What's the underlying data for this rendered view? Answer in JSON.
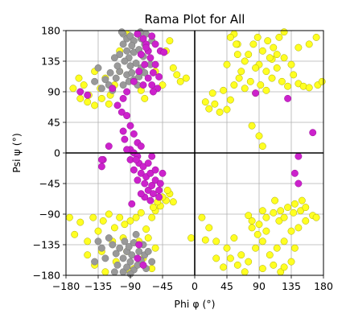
{
  "chart_data": {
    "type": "scatter",
    "title": "Rama Plot for All",
    "xlabel": "Phi φ (°)",
    "ylabel": "Psi ψ (°)",
    "xlim": [
      -180,
      180
    ],
    "ylim": [
      -180,
      180
    ],
    "xticks": [
      -180,
      -135,
      -90,
      -45,
      0,
      45,
      90,
      135,
      180
    ],
    "yticks": [
      -180,
      -135,
      -90,
      -45,
      0,
      45,
      90,
      135,
      180
    ],
    "xtick_labels": [
      "−180",
      "−135",
      "−90",
      "−45",
      "0",
      "45",
      "90",
      "135",
      "180"
    ],
    "ytick_labels": [
      "−180",
      "−135",
      "−90",
      "−45",
      "0",
      "45",
      "90",
      "135",
      "180"
    ],
    "grid": true,
    "zero_lines": true,
    "series": [
      {
        "color": "#ffff22",
        "edge": "#aaaa00",
        "points": [
          [
            -175,
            -95
          ],
          [
            -168,
            -120
          ],
          [
            -160,
            -102
          ],
          [
            -150,
            -130
          ],
          [
            -142,
            -95
          ],
          [
            -135,
            -115
          ],
          [
            -128,
            -100
          ],
          [
            -120,
            -90
          ],
          [
            -112,
            -110
          ],
          [
            -105,
            -95
          ],
          [
            -98,
            -105
          ],
          [
            -90,
            -100
          ],
          [
            -82,
            -95
          ],
          [
            -75,
            -88
          ],
          [
            -68,
            -112
          ],
          [
            -150,
            -150
          ],
          [
            -140,
            -165
          ],
          [
            -125,
            -175
          ],
          [
            -110,
            -160
          ],
          [
            -95,
            -145
          ],
          [
            -85,
            -170
          ],
          [
            -72,
            -155
          ],
          [
            -60,
            -170
          ],
          [
            -55,
            -140
          ],
          [
            -115,
            -130
          ],
          [
            -100,
            -125
          ],
          [
            -130,
            -145
          ],
          [
            -78,
            -130
          ],
          [
            -65,
            -125
          ],
          [
            -90,
            -175
          ],
          [
            -60,
            -95
          ],
          [
            -55,
            -85
          ],
          [
            -48,
            -78
          ],
          [
            -40,
            -70
          ],
          [
            -35,
            -60
          ],
          [
            -52,
            -72
          ],
          [
            -45,
            -65
          ],
          [
            -30,
            -72
          ],
          [
            -58,
            -80
          ],
          [
            -38,
            -55
          ],
          [
            -170,
            95
          ],
          [
            -162,
            110
          ],
          [
            -155,
            100
          ],
          [
            -148,
            85
          ],
          [
            -140,
            120
          ],
          [
            -132,
            95
          ],
          [
            -125,
            110
          ],
          [
            -118,
            85
          ],
          [
            -112,
            100
          ],
          [
            -105,
            120
          ],
          [
            -150,
            75
          ],
          [
            -140,
            70
          ],
          [
            -130,
            80
          ],
          [
            -120,
            72
          ],
          [
            -160,
            80
          ],
          [
            -25,
            115
          ],
          [
            -20,
            105
          ],
          [
            -12,
            110
          ],
          [
            -45,
            100
          ],
          [
            -30,
            125
          ],
          [
            -40,
            150
          ],
          [
            -35,
            165
          ],
          [
            -105,
            150
          ],
          [
            -95,
            175
          ],
          [
            -55,
            120
          ],
          [
            -70,
            80
          ],
          [
            -75,
            92
          ],
          [
            15,
            75
          ],
          [
            20,
            65
          ],
          [
            28,
            72
          ],
          [
            35,
            60
          ],
          [
            25,
            88
          ],
          [
            40,
            92
          ],
          [
            50,
            78
          ],
          [
            45,
            64
          ],
          [
            55,
            100
          ],
          [
            62,
            110
          ],
          [
            70,
            95
          ],
          [
            78,
            105
          ],
          [
            85,
            88
          ],
          [
            92,
            100
          ],
          [
            100,
            92
          ],
          [
            108,
            110
          ],
          [
            115,
            125
          ],
          [
            122,
            105
          ],
          [
            130,
            98
          ],
          [
            138,
            115
          ],
          [
            145,
            102
          ],
          [
            152,
            98
          ],
          [
            160,
            96
          ],
          [
            172,
            100
          ],
          [
            178,
            105
          ],
          [
            75,
            145
          ],
          [
            82,
            160
          ],
          [
            88,
            170
          ],
          [
            95,
            150
          ],
          [
            102,
            165
          ],
          [
            110,
            155
          ],
          [
            118,
            170
          ],
          [
            125,
            178
          ],
          [
            90,
            130
          ],
          [
            85,
            125
          ],
          [
            100,
            120
          ],
          [
            108,
            138
          ],
          [
            115,
            145
          ],
          [
            125,
            140
          ],
          [
            135,
            130
          ],
          [
            145,
            155
          ],
          [
            160,
            160
          ],
          [
            170,
            170
          ],
          [
            55,
            175
          ],
          [
            50,
            170
          ],
          [
            60,
            160
          ],
          [
            45,
            130
          ],
          [
            70,
            135
          ],
          [
            65,
            120
          ],
          [
            95,
            10
          ],
          [
            90,
            25
          ],
          [
            80,
            40
          ],
          [
            60,
            145
          ],
          [
            58,
            160
          ],
          [
            105,
            140
          ],
          [
            10,
            -95
          ],
          [
            20,
            -110
          ],
          [
            30,
            -130
          ],
          [
            45,
            -140
          ],
          [
            55,
            -125
          ],
          [
            65,
            -150
          ],
          [
            75,
            -160
          ],
          [
            85,
            -140
          ],
          [
            95,
            -130
          ],
          [
            105,
            -150
          ],
          [
            115,
            -140
          ],
          [
            125,
            -130
          ],
          [
            135,
            -115
          ],
          [
            145,
            -110
          ],
          [
            155,
            -100
          ],
          [
            165,
            -92
          ],
          [
            170,
            -95
          ],
          [
            90,
            -105
          ],
          [
            100,
            -95
          ],
          [
            110,
            -88
          ],
          [
            120,
            -85
          ],
          [
            130,
            -80
          ],
          [
            140,
            -75
          ],
          [
            148,
            -85
          ],
          [
            155,
            -80
          ],
          [
            112,
            -70
          ],
          [
            118,
            -100
          ],
          [
            100,
            -115
          ],
          [
            88,
            -120
          ],
          [
            80,
            -110
          ],
          [
            70,
            -175
          ],
          [
            60,
            -165
          ],
          [
            50,
            -155
          ],
          [
            40,
            -168
          ],
          [
            30,
            -155
          ],
          [
            95,
            -170
          ],
          [
            110,
            -165
          ],
          [
            120,
            -175
          ],
          [
            135,
            -160
          ],
          [
            80,
            -100
          ],
          [
            75,
            -92
          ],
          [
            95,
            -85
          ],
          [
            125,
            -95
          ],
          [
            138,
            -88
          ],
          [
            150,
            -70
          ],
          [
            -5,
            -125
          ],
          [
            15,
            -128
          ],
          [
            125,
            -168
          ],
          [
            140,
            -140
          ]
        ]
      },
      {
        "color": "#999999",
        "edge": "#777777",
        "points": [
          [
            -100,
            175
          ],
          [
            -95,
            168
          ],
          [
            -90,
            172
          ],
          [
            -85,
            165
          ],
          [
            -80,
            175
          ],
          [
            -75,
            168
          ],
          [
            -70,
            160
          ],
          [
            -88,
            158
          ],
          [
            -95,
            150
          ],
          [
            -100,
            160
          ],
          [
            -105,
            145
          ],
          [
            -92,
            140
          ],
          [
            -85,
            148
          ],
          [
            -78,
            152
          ],
          [
            -72,
            142
          ],
          [
            -65,
            150
          ],
          [
            -60,
            165
          ],
          [
            -68,
            175
          ],
          [
            -98,
            135
          ],
          [
            -90,
            128
          ],
          [
            -82,
            132
          ],
          [
            -75,
            125
          ],
          [
            -105,
            120
          ],
          [
            -95,
            115
          ],
          [
            -88,
            118
          ],
          [
            -110,
            110
          ],
          [
            -100,
            100
          ],
          [
            -92,
            105
          ],
          [
            -85,
            108
          ],
          [
            -120,
            100
          ],
          [
            -130,
            95
          ],
          [
            -115,
            92
          ],
          [
            -80,
            100
          ],
          [
            -78,
            112
          ],
          [
            -70,
            118
          ],
          [
            -62,
            130
          ],
          [
            -108,
            128
          ],
          [
            -112,
            140
          ],
          [
            -102,
            178
          ],
          [
            -76,
            178
          ],
          [
            -140,
            105
          ],
          [
            -125,
            108
          ],
          [
            -118,
            118
          ],
          [
            -135,
            125
          ],
          [
            -100,
            -175
          ],
          [
            -95,
            -168
          ],
          [
            -90,
            -160
          ],
          [
            -85,
            -172
          ],
          [
            -80,
            -165
          ],
          [
            -75,
            -158
          ],
          [
            -70,
            -150
          ],
          [
            -88,
            -150
          ],
          [
            -95,
            -145
          ],
          [
            -100,
            -155
          ],
          [
            -105,
            -140
          ],
          [
            -92,
            -138
          ],
          [
            -85,
            -132
          ],
          [
            -78,
            -145
          ],
          [
            -72,
            -135
          ],
          [
            -65,
            -145
          ],
          [
            -60,
            -160
          ],
          [
            -110,
            -148
          ],
          [
            -115,
            -135
          ],
          [
            -120,
            -125
          ],
          [
            -130,
            -140
          ],
          [
            -125,
            -155
          ],
          [
            -108,
            -165
          ],
          [
            -98,
            -130
          ],
          [
            -82,
            -120
          ],
          [
            -68,
            -170
          ],
          [
            -90,
            -178
          ],
          [
            -135,
            -130
          ],
          [
            -140,
            -160
          ],
          [
            -112,
            -175
          ]
        ]
      },
      {
        "color": "#cc22cc",
        "edge": "#991199",
        "points": [
          [
            -80,
            175
          ],
          [
            -72,
            168
          ],
          [
            -68,
            160
          ],
          [
            -60,
            172
          ],
          [
            -55,
            160
          ],
          [
            -65,
            150
          ],
          [
            -75,
            145
          ],
          [
            -62,
            140
          ],
          [
            -55,
            130
          ],
          [
            -70,
            130
          ],
          [
            -48,
            150
          ],
          [
            -58,
            118
          ],
          [
            -50,
            112
          ],
          [
            -65,
            110
          ],
          [
            -72,
            100
          ],
          [
            -60,
            100
          ],
          [
            -52,
            95
          ],
          [
            -78,
            120
          ],
          [
            -85,
            105
          ],
          [
            -95,
            90
          ],
          [
            -100,
            80
          ],
          [
            -108,
            70
          ],
          [
            -102,
            60
          ],
          [
            -95,
            55
          ],
          [
            -90,
            40
          ],
          [
            -98,
            20
          ],
          [
            -85,
            28
          ],
          [
            -80,
            15
          ],
          [
            -75,
            10
          ],
          [
            -120,
            10
          ],
          [
            -128,
            -10
          ],
          [
            -130,
            -20
          ],
          [
            -90,
            5
          ],
          [
            -85,
            0
          ],
          [
            -80,
            -5
          ],
          [
            -78,
            -15
          ],
          [
            -72,
            -20
          ],
          [
            -75,
            -30
          ],
          [
            -68,
            -35
          ],
          [
            -62,
            -30
          ],
          [
            -70,
            -45
          ],
          [
            -65,
            -55
          ],
          [
            -60,
            -48
          ],
          [
            -55,
            -40
          ],
          [
            -58,
            -60
          ],
          [
            -50,
            -55
          ],
          [
            -48,
            -45
          ],
          [
            -62,
            -70
          ],
          [
            -70,
            -65
          ],
          [
            -75,
            -60
          ],
          [
            -55,
            -25
          ],
          [
            -65,
            -15
          ],
          [
            -85,
            -25
          ],
          [
            -80,
            -40
          ],
          [
            -90,
            -10
          ],
          [
            -95,
            5
          ],
          [
            -82,
            -10
          ],
          [
            -60,
            -5
          ],
          [
            -50,
            -65
          ],
          [
            -45,
            -30
          ],
          [
            -160,
            90
          ],
          [
            -150,
            85
          ],
          [
            -78,
            -135
          ],
          [
            -80,
            -155
          ],
          [
            -72,
            -165
          ],
          [
            -100,
            32
          ],
          [
            -115,
            95
          ],
          [
            -43,
            148
          ],
          [
            -68,
            155
          ],
          [
            130,
            80
          ],
          [
            165,
            30
          ],
          [
            145,
            -5
          ],
          [
            140,
            -30
          ],
          [
            145,
            -45
          ],
          [
            85,
            88
          ],
          [
            -130,
            -10
          ],
          [
            -58,
            90
          ],
          [
            -88,
            -75
          ]
        ]
      }
    ]
  }
}
